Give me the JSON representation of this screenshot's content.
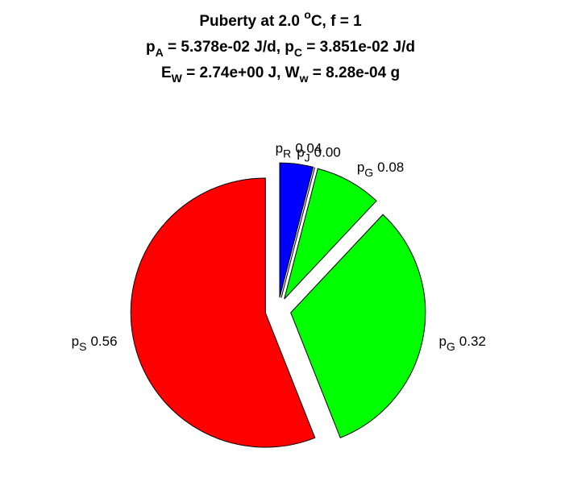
{
  "chart_data": {
    "type": "pie",
    "title": [
      [
        {
          "text": "Puberty at 2.0 ",
          "style": "normal"
        },
        {
          "text": "o",
          "style": "sup"
        },
        {
          "text": "C, f = 1",
          "style": "normal"
        }
      ],
      [
        {
          "text": "p",
          "style": "normal"
        },
        {
          "text": "A",
          "style": "sub"
        },
        {
          "text": " = 5.378e-02 J/d,  p",
          "style": "normal"
        },
        {
          "text": "C",
          "style": "sub"
        },
        {
          "text": " = 3.851e-02 J/d",
          "style": "normal"
        }
      ],
      [
        {
          "text": "E",
          "style": "normal"
        },
        {
          "text": "W",
          "style": "sub"
        },
        {
          "text": " = 2.74e+00 J, W",
          "style": "normal"
        },
        {
          "text": "w",
          "style": "sub"
        },
        {
          "text": " = 8.28e-04 g",
          "style": "normal"
        }
      ]
    ],
    "categories": [
      {
        "base": "p",
        "sub": "R"
      },
      {
        "base": "p",
        "sub": "J"
      },
      {
        "base": "p",
        "sub": "G"
      },
      {
        "base": "p",
        "sub": "G"
      },
      {
        "base": "p",
        "sub": "S"
      }
    ],
    "values": [
      0.04,
      0.0,
      0.08,
      0.32,
      0.56
    ],
    "value_labels": [
      "0.04",
      "0.00",
      "0.08",
      "0.32",
      "0.56"
    ],
    "colors": [
      "#0000ff",
      "#ffffff",
      "#00ff00",
      "#00ff00",
      "#ff0000"
    ],
    "exploded": true
  }
}
